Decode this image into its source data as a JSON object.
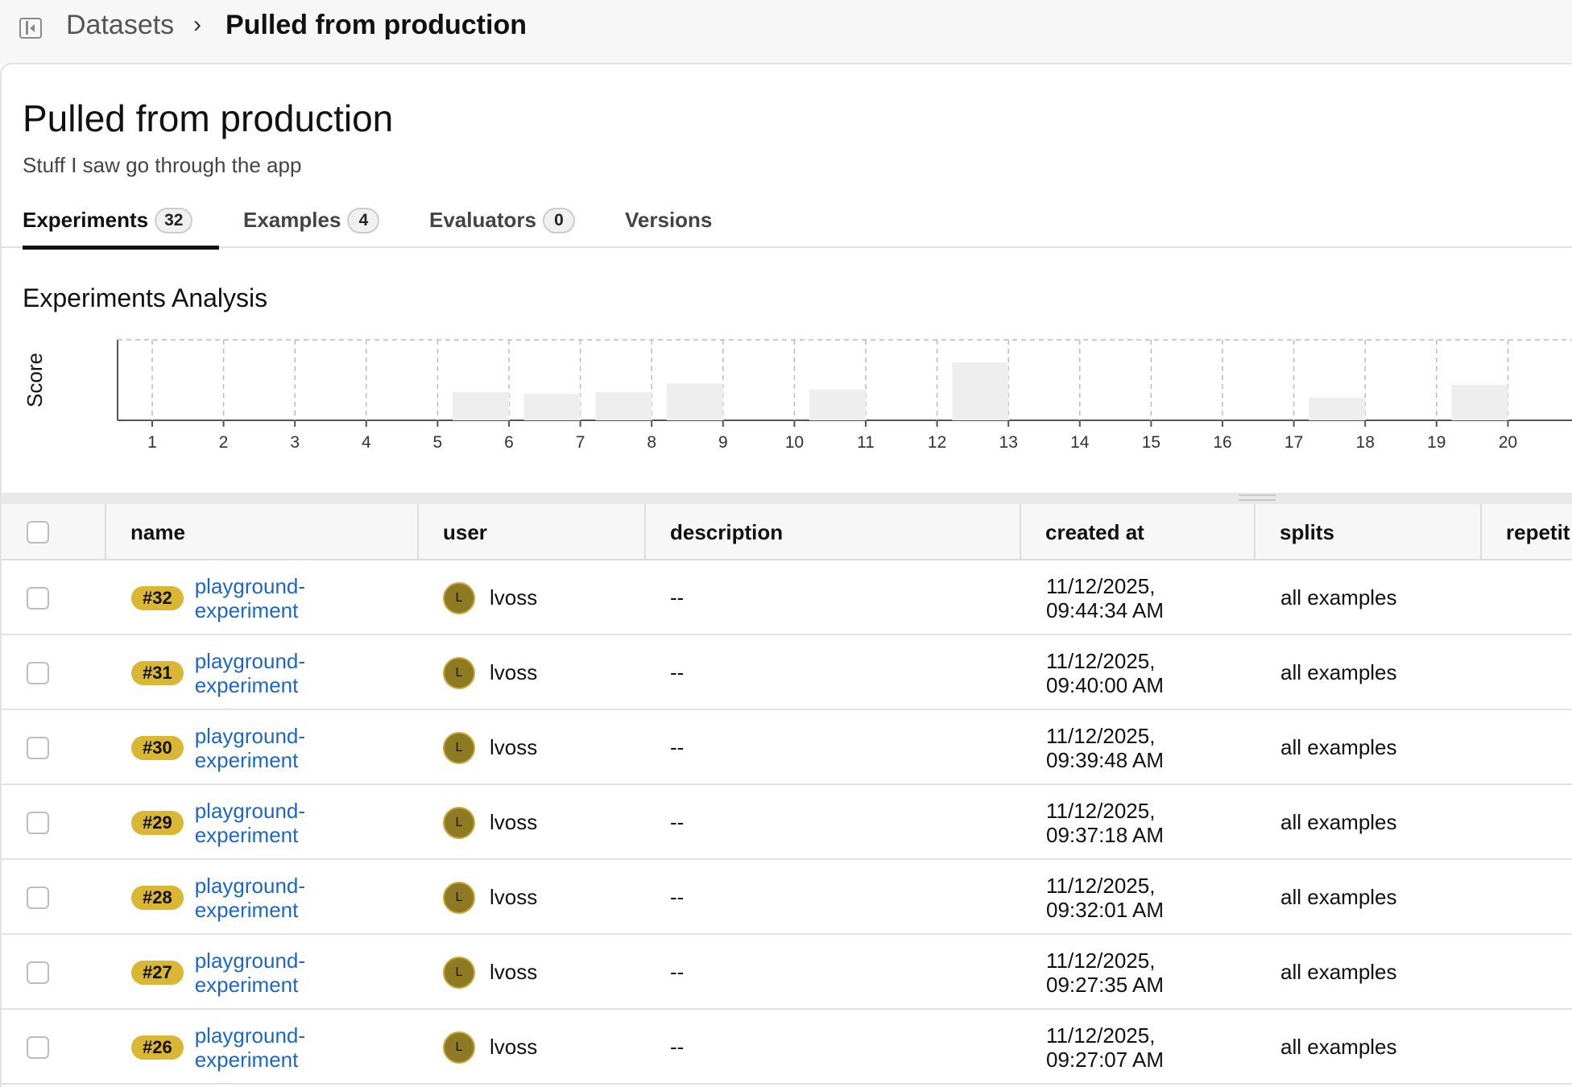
{
  "breadcrumb": {
    "parent": "Datasets",
    "separator": "›",
    "current": "Pulled from production"
  },
  "page": {
    "title": "Pulled from production",
    "subtitle": "Stuff I saw go through the app"
  },
  "tabs": [
    {
      "label": "Experiments",
      "count": "32",
      "active": true
    },
    {
      "label": "Examples",
      "count": "4",
      "active": false
    },
    {
      "label": "Evaluators",
      "count": "0",
      "active": false
    },
    {
      "label": "Versions",
      "count": "",
      "active": false
    }
  ],
  "analysis": {
    "title": "Experiments Analysis"
  },
  "chart_data": {
    "type": "bar",
    "ylabel": "Score",
    "xlabel": "",
    "categories": [
      1,
      2,
      3,
      4,
      5,
      6,
      7,
      8,
      9,
      10,
      11,
      12,
      13,
      14,
      15,
      16,
      17,
      18,
      19,
      20
    ],
    "values": [
      0,
      0,
      0,
      0,
      0,
      0.35,
      0.33,
      0.35,
      0.46,
      0,
      0.38,
      0,
      0.72,
      0,
      0,
      0,
      0,
      0.28,
      0,
      0.44
    ],
    "ylim": [
      0,
      1
    ],
    "grid": true,
    "bar_color": "#eeeeee"
  },
  "table": {
    "columns": [
      "name",
      "user",
      "description",
      "created at",
      "splits",
      "repetit"
    ],
    "rows": [
      {
        "id": "#32",
        "name_line1": "playground-",
        "name_line2": "experiment",
        "avatar": "L",
        "user": "lvoss",
        "description": "--",
        "date_line1": "11/12/2025,",
        "date_line2": "09:44:34 AM",
        "splits": "all examples"
      },
      {
        "id": "#31",
        "name_line1": "playground-",
        "name_line2": "experiment",
        "avatar": "L",
        "user": "lvoss",
        "description": "--",
        "date_line1": "11/12/2025,",
        "date_line2": "09:40:00 AM",
        "splits": "all examples"
      },
      {
        "id": "#30",
        "name_line1": "playground-",
        "name_line2": "experiment",
        "avatar": "L",
        "user": "lvoss",
        "description": "--",
        "date_line1": "11/12/2025,",
        "date_line2": "09:39:48 AM",
        "splits": "all examples"
      },
      {
        "id": "#29",
        "name_line1": "playground-",
        "name_line2": "experiment",
        "avatar": "L",
        "user": "lvoss",
        "description": "--",
        "date_line1": "11/12/2025,",
        "date_line2": "09:37:18 AM",
        "splits": "all examples"
      },
      {
        "id": "#28",
        "name_line1": "playground-",
        "name_line2": "experiment",
        "avatar": "L",
        "user": "lvoss",
        "description": "--",
        "date_line1": "11/12/2025,",
        "date_line2": "09:32:01 AM",
        "splits": "all examples"
      },
      {
        "id": "#27",
        "name_line1": "playground-",
        "name_line2": "experiment",
        "avatar": "L",
        "user": "lvoss",
        "description": "--",
        "date_line1": "11/12/2025,",
        "date_line2": "09:27:35 AM",
        "splits": "all examples"
      },
      {
        "id": "#26",
        "name_line1": "playground-",
        "name_line2": "experiment",
        "avatar": "L",
        "user": "lvoss",
        "description": "--",
        "date_line1": "11/12/2025,",
        "date_line2": "09:27:07 AM",
        "splits": "all examples"
      }
    ]
  },
  "colors": {
    "accent_link": "#1d66c8",
    "id_badge": "#d9b633",
    "avatar": "#8d7a22"
  }
}
